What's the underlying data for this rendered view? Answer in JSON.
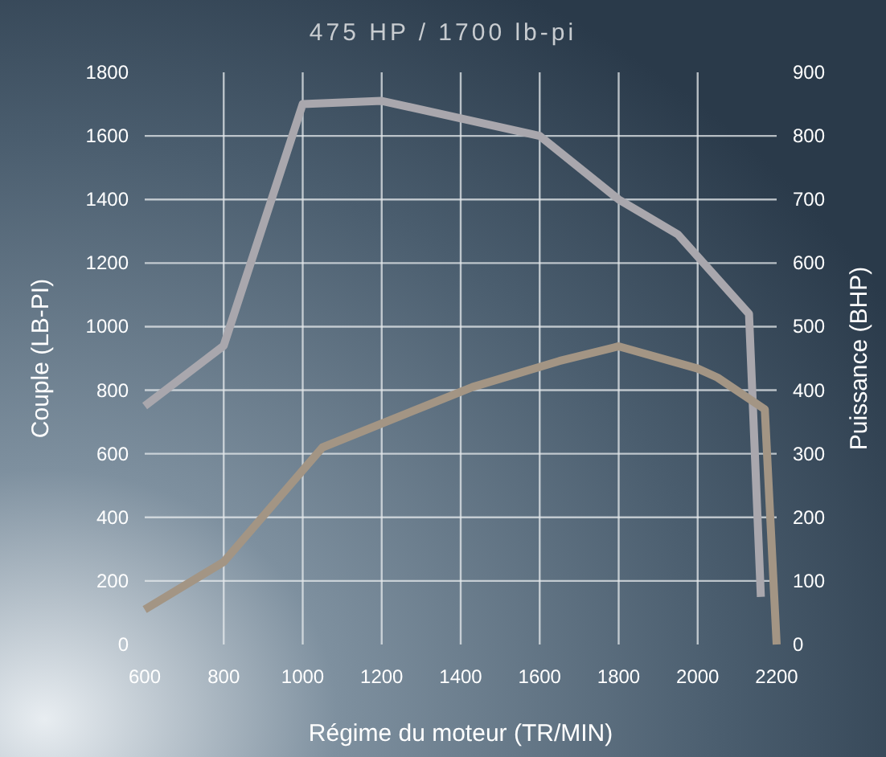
{
  "chart_data": {
    "type": "line",
    "title": "475 HP / 1700 lb-pi",
    "xlabel": "Régime du moteur (TR/MIN)",
    "ylabel": "Couple (LB-PI)",
    "y2label": "Puissance (BHP)",
    "xlim": [
      600,
      2200
    ],
    "xticks": [
      600,
      800,
      1000,
      1200,
      1400,
      1600,
      1800,
      2000,
      2200
    ],
    "ylim": [
      0,
      1800
    ],
    "yticks": [
      0,
      200,
      400,
      600,
      800,
      1000,
      1200,
      1400,
      1600,
      1800
    ],
    "y2lim": [
      0,
      900
    ],
    "y2ticks": [
      0,
      100,
      200,
      300,
      400,
      500,
      600,
      700,
      800,
      900
    ],
    "grid": true,
    "line_style": "solid",
    "marker": "none",
    "series": [
      {
        "color": "#a9a7ad",
        "x": [
          600,
          800,
          1000,
          1200,
          1600,
          1800,
          1950,
          2130,
          2160
        ],
        "values": [
          750,
          940,
          1700,
          1710,
          1600,
          1400,
          1290,
          1040,
          150
        ]
      },
      {
        "color": "#a39584",
        "axis": "y2",
        "x": [
          600,
          800,
          1050,
          1430,
          1650,
          1800,
          2000,
          2050,
          2170,
          2200
        ],
        "values": [
          55,
          130,
          310,
          405,
          446,
          469,
          434,
          420,
          370,
          0
        ]
      }
    ]
  }
}
